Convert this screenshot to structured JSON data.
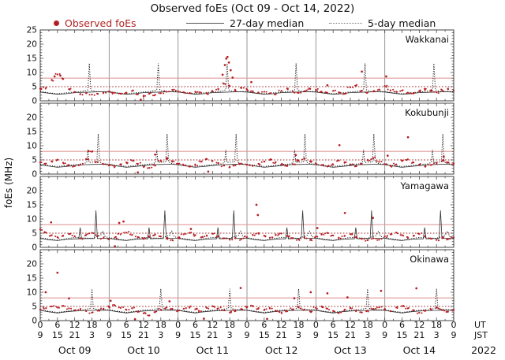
{
  "chart_data": {
    "type": "scatter",
    "title": "Observed foEs (Oct 09 - Oct 14, 2022)",
    "legend": {
      "observed": "Observed foEs",
      "median27": "27-day median",
      "median5": "5-day median"
    },
    "y_axis": {
      "label": "foEs (MHz)",
      "min": 0,
      "max": 25,
      "major_ticks": [
        0,
        5,
        10,
        15,
        20,
        25
      ]
    },
    "x_axis": {
      "span_hours": 144,
      "major_step_hours": 6,
      "minor_step_hours": 3,
      "ut_label_cycle": [
        0,
        6,
        12,
        18
      ],
      "jst_label_cycle": [
        9,
        15,
        21,
        3
      ],
      "unit_row1": "UT",
      "unit_row2": "JST",
      "year": "2022",
      "day_labels": [
        "Oct 09",
        "Oct 10",
        "Oct 11",
        "Oct 12",
        "Oct 13",
        "Oct 14"
      ]
    },
    "thresholds": {
      "solid_red_mhz": 8,
      "dotted_red_mhz": 5
    },
    "colors": {
      "observed": "#b51d23",
      "median27": "#333333",
      "median5": "#1a1a1a",
      "threshold_solid": "#e09a9a",
      "threshold_dotted": "#a32020",
      "day_gridline": "#8a8a8a",
      "panel_border": "#444444",
      "legend_text_red": "#b22222"
    },
    "layout": {
      "grid": "day-boundaries-only",
      "legend_position": "top",
      "scatter_jitter_copies": 2,
      "scatter_jitter_dt": 0.9,
      "scatter_jitter_dv": 0.35,
      "dot_radius": 1.15
    },
    "panels": [
      {
        "station": "Wakkanai",
        "ytick_labels": [
          0,
          5,
          10,
          15,
          20,
          25
        ],
        "spike_line": "median5",
        "observed_2h": {
          "t0": 0,
          "dt": 2,
          "values": [
            4.3,
            4.6,
            7.4,
            9.3,
            7.7,
            4.1,
            3.1,
            2.4,
            2.7,
            2.2,
            2.5,
            2.9,
            3.3,
            2.8,
            2.5,
            2.9,
            3.5,
            2.3,
            1.8,
            2.5,
            2.1,
            2.7,
            3.2,
            3.9,
            3.4,
            3.0,
            2.7,
            3.2,
            2.8,
            2.6,
            3.4,
            4.2,
            6.0,
            5.2,
            3.7,
            4.5,
            4.0,
            3.4,
            2.8,
            3.2,
            2.6,
            2.3,
            3.5,
            4.3,
            3.2,
            2.8,
            3.4,
            4.2,
            3.9,
            3.2,
            2.8,
            3.5,
            3.0,
            2.5,
            4.8,
            5.4,
            3.6,
            2.9,
            3.3,
            4.0,
            5.2,
            3.7,
            3.2,
            3.6,
            2.9,
            2.6,
            3.4,
            3.9,
            3.5,
            3.0,
            3.7,
            4.3,
            3.6
          ]
        },
        "outliers": [
          [
            5,
            8.6
          ],
          [
            7,
            8.9
          ],
          [
            35,
            0.4
          ],
          [
            63.5,
            9.2
          ],
          [
            64.3,
            12.6
          ],
          [
            64.8,
            14.9
          ],
          [
            65.2,
            15.5
          ],
          [
            65.7,
            13.5
          ],
          [
            66.3,
            10.8
          ],
          [
            67,
            8.2
          ],
          [
            73.5,
            6.6
          ],
          [
            100,
            5.5
          ],
          [
            112,
            10.3
          ],
          [
            120.5,
            8.6
          ]
        ],
        "median27_day_pattern": [
          [
            0,
            3.1
          ],
          [
            3,
            2.7
          ],
          [
            6,
            2.3
          ],
          [
            9,
            2.5
          ],
          [
            12,
            2.9
          ],
          [
            15,
            3.0
          ],
          [
            18,
            3.1
          ],
          [
            21,
            3.2
          ],
          [
            24,
            3.1
          ]
        ],
        "median5_day_pattern": [
          [
            0,
            3.3
          ],
          [
            3,
            2.8
          ],
          [
            6,
            2.5
          ],
          [
            9,
            2.8
          ],
          [
            12,
            3.1
          ],
          [
            15,
            3.4
          ],
          [
            16.6,
            3.9
          ],
          [
            17.1,
            13.2
          ],
          [
            17.6,
            3.9
          ],
          [
            19,
            3.3
          ],
          [
            21,
            3.2
          ],
          [
            24,
            3.3
          ]
        ]
      },
      {
        "station": "Kokubunji",
        "ytick_labels": [
          0,
          5,
          10,
          15,
          20
        ],
        "spike_line": "median5",
        "observed_2h": {
          "t0": 0,
          "dt": 2,
          "values": [
            4.1,
            3.7,
            4.5,
            5.1,
            4.0,
            3.2,
            2.8,
            3.4,
            5.3,
            7.9,
            4.2,
            3.5,
            3.1,
            2.7,
            3.3,
            4.1,
            4.8,
            3.6,
            2.6,
            2.2,
            3.0,
            4.6,
            5.6,
            4.4,
            3.6,
            3.1,
            2.6,
            3.2,
            4.4,
            5.3,
            4.6,
            3.8,
            3.0,
            2.5,
            3.1,
            3.7,
            3.3,
            2.9,
            3.6,
            4.4,
            5.0,
            4.2,
            3.4,
            2.8,
            3.5,
            4.7,
            5.5,
            4.5,
            3.8,
            3.2,
            2.7,
            3.4,
            4.8,
            4.0,
            3.3,
            2.8,
            3.6,
            4.9,
            5.6,
            4.3,
            3.5,
            2.9,
            3.4,
            4.6,
            5.2,
            4.1,
            3.3,
            2.7,
            3.2,
            4.0,
            4.7,
            4.2,
            3.7
          ]
        },
        "outliers": [
          [
            16.8,
            8.1
          ],
          [
            34,
            0.6
          ],
          [
            40,
            6.9
          ],
          [
            58.5,
            0.9
          ],
          [
            89,
            6.7
          ],
          [
            104.2,
            10.2
          ],
          [
            121,
            6.5
          ],
          [
            128.1,
            13.0
          ],
          [
            140.5,
            6.2
          ]
        ],
        "median27_day_pattern": [
          [
            0,
            3.3
          ],
          [
            3,
            2.8
          ],
          [
            6,
            2.4
          ],
          [
            9,
            2.7
          ],
          [
            12,
            3.0
          ],
          [
            15,
            3.3
          ],
          [
            18,
            3.4
          ],
          [
            21,
            3.5
          ],
          [
            24,
            3.3
          ]
        ],
        "median5_day_pattern": [
          [
            0,
            3.5
          ],
          [
            3,
            3.0
          ],
          [
            6,
            2.7
          ],
          [
            9,
            3.0
          ],
          [
            12,
            3.3
          ],
          [
            15,
            3.6
          ],
          [
            16.2,
            4.1
          ],
          [
            16.6,
            8.6
          ],
          [
            17.0,
            4.1
          ],
          [
            19.7,
            4.3
          ],
          [
            20.2,
            14.2
          ],
          [
            20.7,
            4.3
          ],
          [
            22,
            3.6
          ],
          [
            24,
            3.5
          ]
        ]
      },
      {
        "station": "Yamagawa",
        "ytick_labels": [
          0,
          5,
          10,
          15,
          20
        ],
        "spike_line": "median27",
        "observed_2h": {
          "t0": 0,
          "dt": 2,
          "values": [
            6.4,
            5.2,
            4.3,
            3.6,
            4.1,
            4.7,
            3.9,
            3.2,
            4.4,
            5.1,
            4.0,
            3.3,
            2.8,
            3.5,
            4.6,
            5.2,
            4.4,
            3.6,
            3.0,
            3.7,
            4.5,
            3.8,
            3.1,
            2.6,
            3.4,
            4.6,
            5.1,
            4.3,
            3.5,
            4.2,
            4.8,
            3.9,
            3.2,
            2.7,
            3.3,
            2.9,
            3.6,
            4.4,
            5.0,
            4.1,
            3.4,
            4.3,
            4.9,
            4.0,
            3.3,
            2.8,
            3.5,
            2.6,
            3.8,
            4.5,
            5.1,
            4.2,
            3.4,
            4.0,
            4.6,
            3.7,
            3.0,
            2.5,
            3.2,
            2.7,
            3.9,
            4.6,
            5.2,
            4.3,
            3.5,
            4.1,
            4.7,
            3.8,
            3.1,
            2.6,
            3.3,
            2.9,
            3.4
          ]
        },
        "outliers": [
          [
            3.8,
            8.8
          ],
          [
            26,
            0.4
          ],
          [
            27.5,
            8.6
          ],
          [
            29,
            9.1
          ],
          [
            52.5,
            6.5
          ],
          [
            75.3,
            15.0
          ],
          [
            75.8,
            11.4
          ],
          [
            96.5,
            6.8
          ],
          [
            106.1,
            12.1
          ],
          [
            115.9,
            10.4
          ]
        ],
        "median27_day_pattern": [
          [
            0,
            3.2
          ],
          [
            3,
            2.7
          ],
          [
            6,
            2.4
          ],
          [
            9,
            2.8
          ],
          [
            12,
            3.0
          ],
          [
            13.4,
            3.0
          ],
          [
            13.9,
            7.0
          ],
          [
            14.4,
            3.0
          ],
          [
            16,
            3.1
          ],
          [
            18.9,
            3.1
          ],
          [
            19.4,
            13.0
          ],
          [
            19.9,
            3.1
          ],
          [
            22,
            3.2
          ],
          [
            24,
            3.2
          ]
        ],
        "median5_day_pattern": [
          [
            0,
            3.4
          ],
          [
            3,
            2.9
          ],
          [
            6,
            2.5
          ],
          [
            9,
            3.0
          ],
          [
            12,
            3.5
          ],
          [
            15,
            3.3
          ],
          [
            18,
            3.2
          ],
          [
            21,
            4.2
          ],
          [
            21.8,
            5.7
          ],
          [
            22.6,
            3.8
          ],
          [
            24,
            3.4
          ]
        ]
      },
      {
        "station": "Okinawa",
        "ytick_labels": [
          0,
          5,
          10,
          15,
          20
        ],
        "spike_line": "median5",
        "observed_2h": {
          "t0": 0,
          "dt": 2,
          "values": [
            3.9,
            4.4,
            5.0,
            4.6,
            5.2,
            4.3,
            3.6,
            4.1,
            3.4,
            2.8,
            3.5,
            4.2,
            4.8,
            5.3,
            4.5,
            3.8,
            4.4,
            3.2,
            2.6,
            1.8,
            3.0,
            3.9,
            4.6,
            4.1,
            3.5,
            4.2,
            4.8,
            4.0,
            3.3,
            4.5,
            5.1,
            4.3,
            3.6,
            2.9,
            3.4,
            4.1,
            4.7,
            5.2,
            4.4,
            3.7,
            4.3,
            3.5,
            2.8,
            3.3,
            4.0,
            4.6,
            3.9,
            3.2,
            4.5,
            5.0,
            4.2,
            3.4,
            2.7,
            3.8,
            4.4,
            3.6,
            2.9,
            3.5,
            4.1,
            4.7,
            4.0,
            3.3,
            4.6,
            5.1,
            4.3,
            3.6,
            2.8,
            3.4,
            4.0,
            4.5,
            3.7,
            3.1,
            3.8
          ]
        },
        "outliers": [
          [
            1.9,
            10.0
          ],
          [
            6.0,
            16.9
          ],
          [
            10,
            7.8
          ],
          [
            24.5,
            7.0
          ],
          [
            33,
            0.5
          ],
          [
            45,
            6.8
          ],
          [
            57,
            0.7
          ],
          [
            69.8,
            11.5
          ],
          [
            79,
            0.6
          ],
          [
            88.5,
            7.9
          ],
          [
            94.2,
            10.0
          ],
          [
            100,
            9.6
          ],
          [
            107,
            8.2
          ],
          [
            118.7,
            10.5
          ],
          [
            131,
            11.4
          ]
        ],
        "median27_day_pattern": [
          [
            0,
            3.6
          ],
          [
            3,
            3.1
          ],
          [
            6,
            2.7
          ],
          [
            9,
            3.1
          ],
          [
            12,
            3.4
          ],
          [
            15,
            3.5
          ],
          [
            18,
            3.6
          ],
          [
            21,
            3.7
          ],
          [
            24,
            3.6
          ]
        ],
        "median5_day_pattern": [
          [
            0,
            3.8
          ],
          [
            3,
            3.3
          ],
          [
            6,
            2.9
          ],
          [
            9,
            3.3
          ],
          [
            12,
            3.7
          ],
          [
            15,
            3.9
          ],
          [
            17.5,
            4.3
          ],
          [
            18.0,
            11.2
          ],
          [
            18.5,
            4.3
          ],
          [
            20,
            3.9
          ],
          [
            22,
            3.8
          ],
          [
            24,
            3.8
          ]
        ]
      }
    ]
  }
}
